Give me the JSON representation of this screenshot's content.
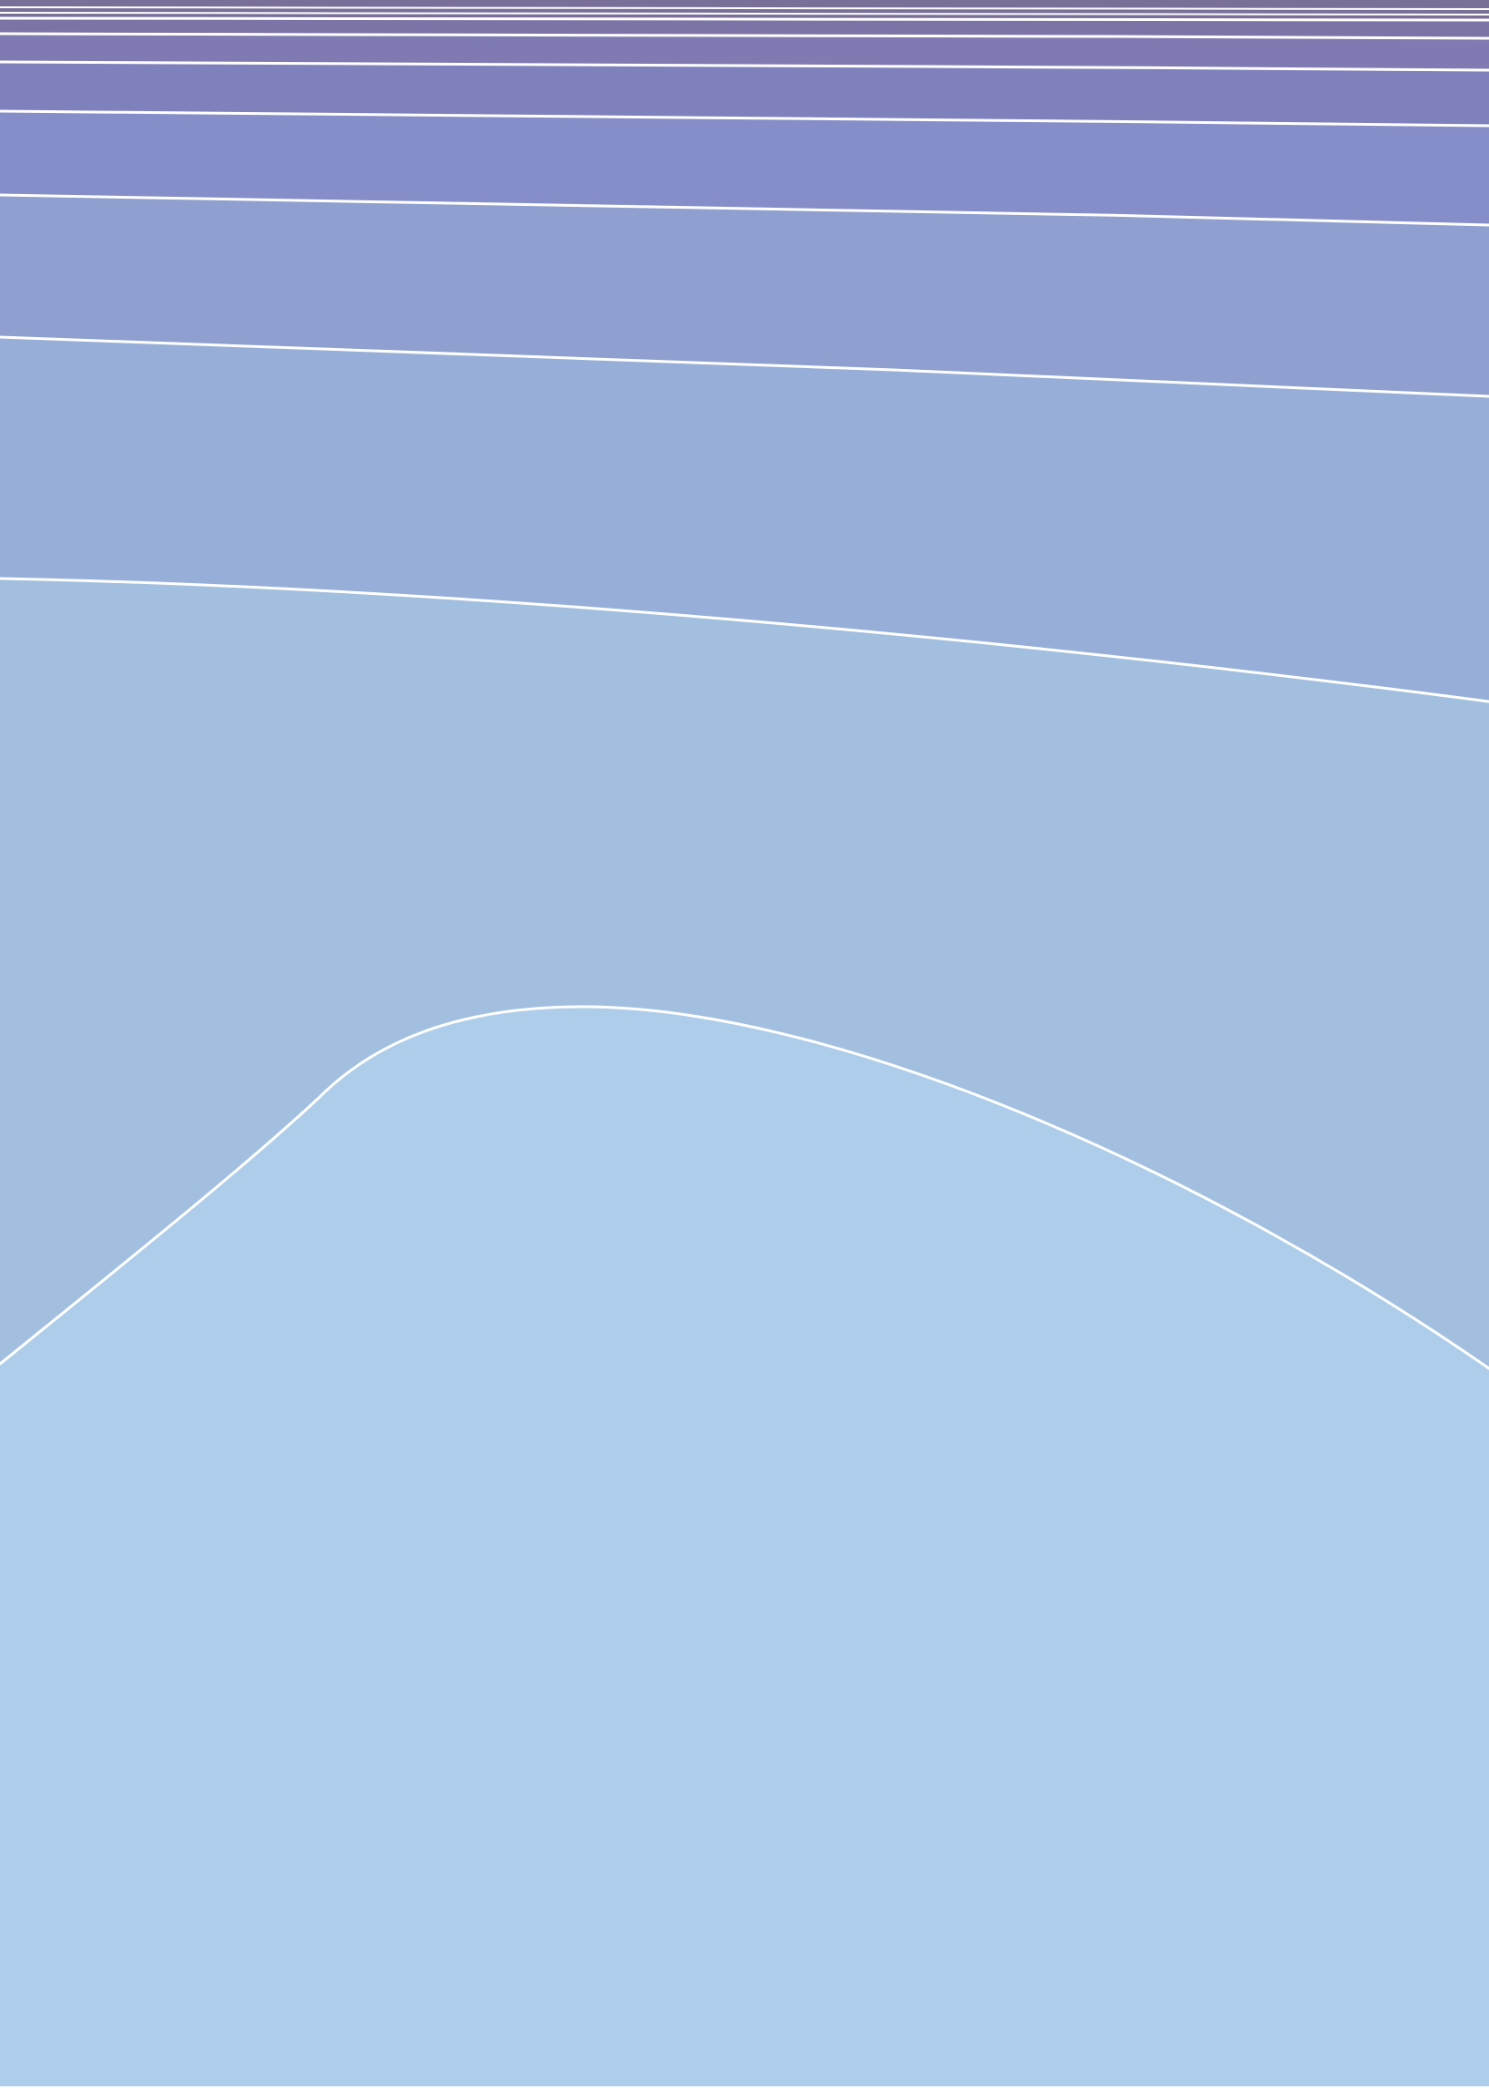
{
  "artwork": {
    "description_colors": {
      "band_top": "#7c72a0",
      "band_2": "#7f7bb2",
      "band_3": "#7f81bd",
      "band_4": "#858ec8",
      "band_5": "#8e9fd0",
      "band_6": "#97afd8",
      "band_7": "#a2bfe0",
      "band_bottom": "#adcdea",
      "contour_line": "#ffffff",
      "page_background": "#ffffff"
    },
    "band_count": 9
  }
}
